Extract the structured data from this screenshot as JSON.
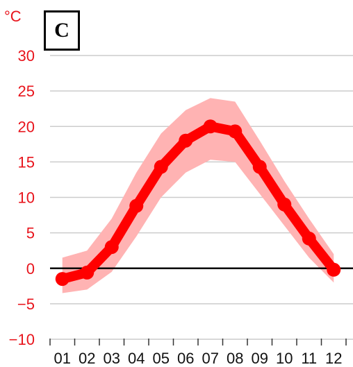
{
  "chart_data": {
    "type": "line",
    "panel_label": "C",
    "unit_label": "°C",
    "x": [
      "01",
      "02",
      "03",
      "04",
      "05",
      "06",
      "07",
      "08",
      "09",
      "10",
      "11",
      "12"
    ],
    "series": [
      {
        "values": [
          -1.5,
          -0.6,
          3.0,
          8.8,
          14.3,
          18.0,
          20.0,
          19.3,
          14.3,
          9.0,
          4.2,
          -0.2
        ]
      }
    ],
    "band": {
      "upper": [
        1.5,
        2.5,
        7.0,
        13.5,
        19.0,
        22.3,
        24.0,
        23.5,
        18.0,
        12.3,
        7.0,
        2.0
      ],
      "lower": [
        -3.5,
        -3.0,
        -0.5,
        4.5,
        10.0,
        13.5,
        15.3,
        15.0,
        10.5,
        6.0,
        1.5,
        -2.0
      ]
    },
    "y_ticks": [
      -10,
      -5,
      0,
      5,
      10,
      15,
      20,
      25,
      30
    ],
    "ylim": [
      -10,
      30
    ],
    "grid": true,
    "colors": {
      "line": "#ff0000",
      "band": "#ffb3b3",
      "grid": "#cccccc",
      "zero_line": "#000000",
      "y_tick_text": "#e8141c"
    }
  }
}
